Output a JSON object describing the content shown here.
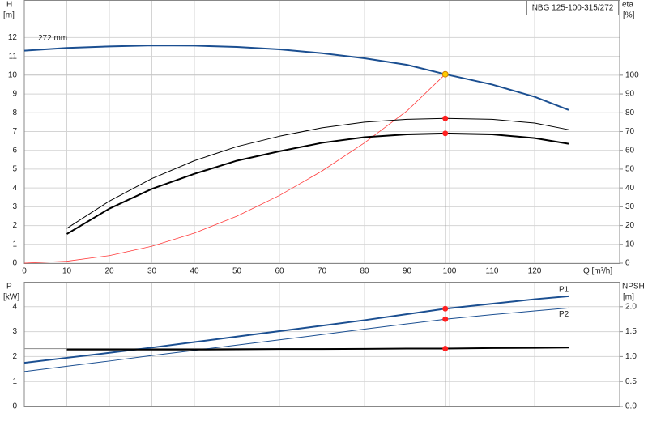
{
  "box_label": "NBG 125-100-315/272",
  "chart_data": [
    {
      "type": "line",
      "annotation": "272 mm",
      "ylabel": "H",
      "yunit": "[m]",
      "y2label": "eta",
      "y2unit": "[%]",
      "xlabel": "Q [m³/h]",
      "x": [
        0,
        10,
        20,
        30,
        40,
        50,
        60,
        70,
        80,
        90,
        99,
        110,
        120,
        128
      ],
      "xlim": [
        0,
        140
      ],
      "xticks": [
        0,
        10,
        20,
        30,
        40,
        50,
        60,
        70,
        80,
        90,
        100,
        110,
        120
      ],
      "ylim": [
        0,
        14
      ],
      "yticks": [
        0,
        1,
        2,
        3,
        4,
        5,
        6,
        7,
        8,
        9,
        10,
        11,
        12
      ],
      "y2lim": [
        0,
        140
      ],
      "y2ticks": [
        0,
        10,
        20,
        30,
        40,
        50,
        60,
        70,
        80,
        90,
        100
      ],
      "grid": true,
      "highlight_x": 99,
      "series": [
        {
          "color": "#1b4f91",
          "width": 2,
          "point_color": "#ffcc00",
          "crosshair": true,
          "values": [
            11.3,
            11.45,
            11.53,
            11.58,
            11.57,
            11.5,
            11.37,
            11.17,
            10.9,
            10.55,
            10.05,
            9.5,
            8.85,
            8.15
          ]
        },
        {
          "color": "#ff3b3b",
          "width": 0.8,
          "values": [
            0,
            0.1,
            0.4,
            0.9,
            1.6,
            2.5,
            3.6,
            4.9,
            6.4,
            8.1,
            10.05,
            null,
            null,
            null
          ]
        },
        {
          "color": "#000000",
          "width": 1,
          "axis": "y2",
          "point_color": "#ff2020",
          "values": [
            null,
            18.5,
            33,
            45,
            54.5,
            62,
            67.5,
            72,
            75,
            76.5,
            77,
            76.5,
            74.5,
            71
          ]
        },
        {
          "color": "#000000",
          "width": 2,
          "axis": "y2",
          "point_color": "#ff2020",
          "values": [
            null,
            15.5,
            29,
            39.5,
            47.5,
            54.5,
            59.5,
            64,
            67,
            68.5,
            69,
            68.5,
            66.5,
            63.5
          ]
        }
      ]
    },
    {
      "type": "line",
      "ylabel": "P",
      "yunit": "[kW]",
      "y2label": "NPSH",
      "y2unit": "[m]",
      "x": [
        0,
        10,
        20,
        30,
        40,
        50,
        60,
        70,
        80,
        90,
        99,
        110,
        120,
        128
      ],
      "xlim": [
        0,
        140
      ],
      "ylim": [
        0,
        5
      ],
      "yticks": [
        0,
        1,
        2,
        3,
        4
      ],
      "y2lim": [
        0,
        2.5
      ],
      "y2ticks": [
        {
          "value": 0,
          "label": "0.0"
        },
        0.5,
        {
          "value": 1,
          "label": "1.0"
        },
        1.5,
        {
          "value": 2,
          "label": "2.0"
        }
      ],
      "grid": true,
      "highlight_x": 99,
      "series": [
        {
          "name": "P1",
          "color": "#1b4f91",
          "width": 2,
          "point_color": "#ff2020",
          "values": [
            1.75,
            1.95,
            2.15,
            2.36,
            2.58,
            2.8,
            3.02,
            3.24,
            3.46,
            3.7,
            3.92,
            4.12,
            4.3,
            4.42
          ]
        },
        {
          "name": "P2",
          "color": "#1b4f91",
          "width": 1,
          "point_color": "#ff2020",
          "values": [
            1.4,
            1.61,
            1.82,
            2.04,
            2.25,
            2.46,
            2.67,
            2.88,
            3.1,
            3.31,
            3.5,
            3.68,
            3.83,
            3.95
          ]
        },
        {
          "color": "#000000",
          "width": 2,
          "axis": "y2",
          "point_color": "#ff2020",
          "crosshair": true,
          "values": [
            null,
            1.14,
            1.14,
            1.14,
            1.14,
            1.145,
            1.15,
            1.15,
            1.155,
            1.16,
            1.16,
            1.17,
            1.175,
            1.18
          ]
        }
      ]
    }
  ]
}
